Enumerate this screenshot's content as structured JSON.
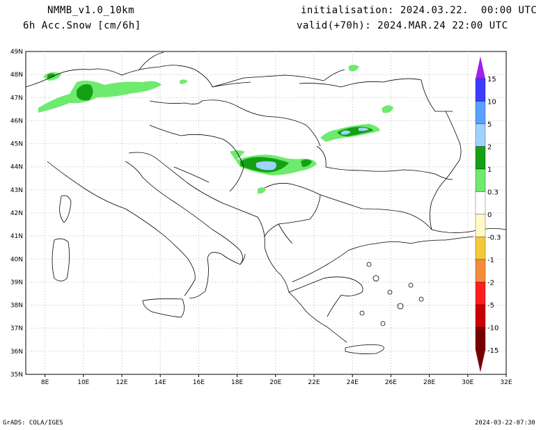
{
  "header": {
    "model": "NMMB_v1.0_10km",
    "variable": "6h Acc.Snow [cm/6h]",
    "init": "initialisation: 2024.03.22.  00:00 UTC",
    "valid": "valid(+70h): 2024.MAR.24 22:00 UTC"
  },
  "footer": {
    "left": "GrADS: COLA/IGES",
    "right": "2024-03-22-07:30"
  },
  "map": {
    "lon_ticks": [
      "8E",
      "10E",
      "12E",
      "14E",
      "16E",
      "18E",
      "20E",
      "22E",
      "24E",
      "26E",
      "28E",
      "30E",
      "32E"
    ],
    "lat_ticks": [
      "49N",
      "48N",
      "47N",
      "46N",
      "45N",
      "44N",
      "43N",
      "42N",
      "41N",
      "40N",
      "39N",
      "38N",
      "37N",
      "36N",
      "35N"
    ],
    "grid": true
  },
  "colorbar": {
    "labels": [
      "15",
      "10",
      "5",
      "2",
      "1",
      "0.3",
      "0",
      "-0.3",
      "-1",
      "-2",
      "-5",
      "-10",
      "-15"
    ],
    "colors": [
      "#a020f0",
      "#3c3cff",
      "#5aa0ff",
      "#a0d2ff",
      "#14a014",
      "#6eea6e",
      "#ffffff",
      "#fffac8",
      "#f5c83c",
      "#f58c3c",
      "#ff1e1e",
      "#c80000",
      "#780000"
    ]
  }
}
